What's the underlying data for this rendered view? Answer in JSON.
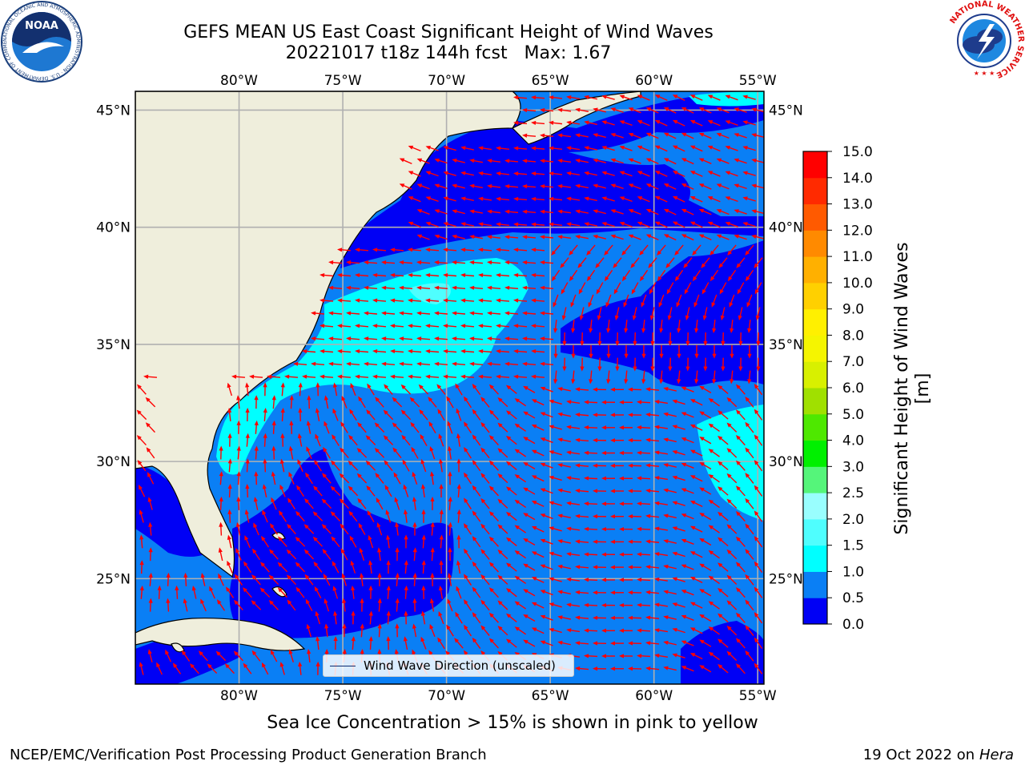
{
  "header": {
    "title": "GEFS MEAN US East Coast Significant Height of Wind Waves",
    "subtitle": "20221017 t18z 144h fcst   Max: 1.67"
  },
  "logos": {
    "left": "NOAA",
    "left_ring_text": "NATIONAL OCEANIC AND ATMOSPHERIC ADMINISTRATION · U.S. DEPARTMENT OF COMMERCE",
    "right_ring_text": "NATIONAL WEATHER SERVICE"
  },
  "map": {
    "lon_labels": [
      "80°W",
      "75°W",
      "70°W",
      "65°W",
      "60°W",
      "55°W"
    ],
    "lat_labels": [
      "45°N",
      "40°N",
      "35°N",
      "30°N",
      "25°N"
    ],
    "lon_values": [
      -80,
      -75,
      -70,
      -65,
      -60,
      -55
    ],
    "lat_values": [
      45,
      40,
      35,
      30,
      25
    ],
    "lon_range": [
      -85,
      -54.7
    ],
    "lat_range": [
      20.5,
      45.8
    ],
    "grid": true,
    "legend": {
      "label": "Wind Wave Direction (unscaled)",
      "placement": "bottom-center"
    },
    "arrow_color": "#ff0000",
    "land_color": "#efeedc",
    "colors": {
      "c0": "#0000f5",
      "c05": "#0a7ff5",
      "c1": "#00ffff",
      "c15": "#4ffefe"
    }
  },
  "colorbar": {
    "label": "Significant Height of Wind Waves [m]",
    "ticks": [
      "0.0",
      "0.5",
      "1.0",
      "1.5",
      "2.0",
      "2.5",
      "3.0",
      "4.0",
      "5.0",
      "6.0",
      "7.0",
      "8.0",
      "9.0",
      "10.0",
      "11.0",
      "12.0",
      "13.0",
      "14.0",
      "15.0"
    ],
    "colors": [
      "#0000f5",
      "#0a7ff5",
      "#00ffff",
      "#4ffefe",
      "#99fefe",
      "#55f57a",
      "#00f000",
      "#4ee800",
      "#a0e000",
      "#d8f000",
      "#f5f500",
      "#fff000",
      "#ffd000",
      "#ffb000",
      "#ff8a00",
      "#ff5a00",
      "#ff2a00",
      "#ff0000"
    ]
  },
  "notes": {
    "sea_ice": "Sea Ice Concentration > 15% is shown in pink to yellow"
  },
  "footer": {
    "left": "NCEP/EMC/Verification Post Processing Product Generation Branch",
    "right_date": "19 Oct 2022 on",
    "right_host": "Hera"
  }
}
